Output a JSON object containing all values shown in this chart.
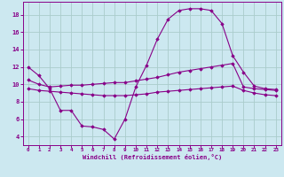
{
  "xlabel": "Windchill (Refroidissement éolien,°C)",
  "background_color": "#cce8f0",
  "line_color": "#880088",
  "grid_color": "#aacccc",
  "x_ticks": [
    0,
    1,
    2,
    3,
    4,
    5,
    6,
    7,
    8,
    9,
    10,
    11,
    12,
    13,
    14,
    15,
    16,
    17,
    18,
    19,
    20,
    21,
    22,
    23
  ],
  "y_ticks": [
    4,
    6,
    8,
    10,
    12,
    14,
    16,
    18
  ],
  "ylim": [
    3.0,
    19.5
  ],
  "xlim": [
    -0.5,
    23.5
  ],
  "line1": [
    12.0,
    11.0,
    9.5,
    7.0,
    7.0,
    5.2,
    5.1,
    4.8,
    3.7,
    6.0,
    9.7,
    12.2,
    15.2,
    17.5,
    18.5,
    18.7,
    18.7,
    18.5,
    17.0,
    13.3,
    11.4,
    9.8,
    9.5,
    9.4
  ],
  "line2": [
    10.5,
    10.0,
    9.7,
    9.8,
    9.9,
    9.9,
    10.0,
    10.1,
    10.2,
    10.2,
    10.4,
    10.6,
    10.8,
    11.1,
    11.4,
    11.6,
    11.8,
    12.0,
    12.2,
    12.4,
    9.7,
    9.5,
    9.4,
    9.3
  ],
  "line3": [
    9.5,
    9.3,
    9.2,
    9.1,
    9.0,
    8.9,
    8.8,
    8.7,
    8.7,
    8.7,
    8.8,
    8.9,
    9.1,
    9.2,
    9.3,
    9.4,
    9.5,
    9.6,
    9.7,
    9.8,
    9.3,
    9.0,
    8.8,
    8.7
  ]
}
